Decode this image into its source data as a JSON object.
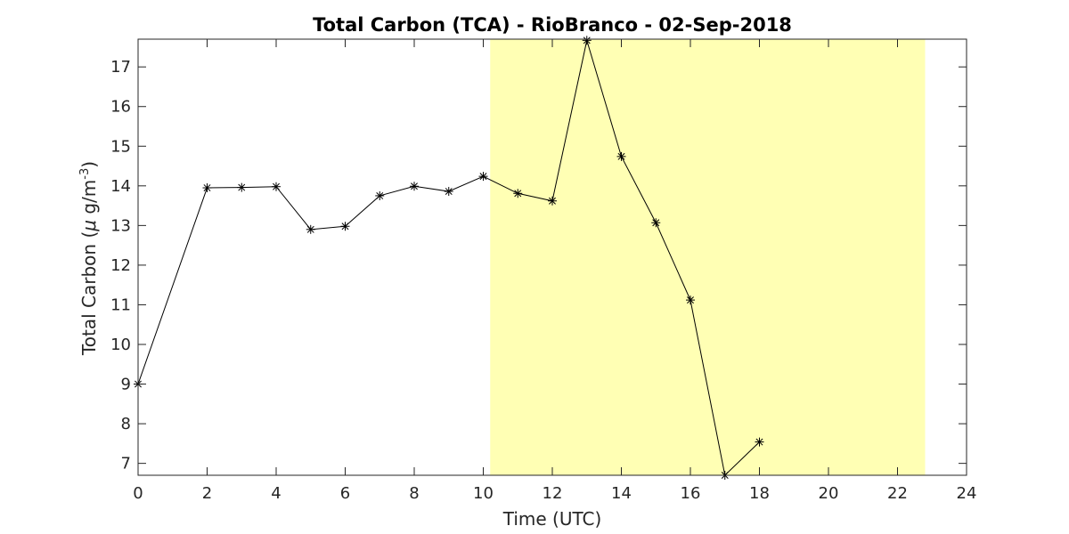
{
  "chart_data": {
    "type": "line",
    "title": "Total Carbon (TCA) - RioBranco - 02-Sep-2018",
    "xlabel": "Time (UTC)",
    "ylabel": {
      "prefix": "Total Carbon (",
      "mu": "μ",
      "unit": " g/m",
      "exponent": "-3",
      "suffix": ")"
    },
    "xlim": [
      0,
      24
    ],
    "ylim": [
      6.7,
      17.7
    ],
    "xticks": [
      0,
      2,
      4,
      6,
      8,
      10,
      12,
      14,
      16,
      18,
      20,
      22,
      24
    ],
    "yticks": [
      7,
      8,
      9,
      10,
      11,
      12,
      13,
      14,
      15,
      16,
      17
    ],
    "grid": false,
    "marker": "asterisk",
    "highlight": {
      "x_start": 10.2,
      "x_end": 22.8,
      "color": "#ffffb4"
    },
    "series_color": "#000000",
    "series": [
      {
        "x": [
          0,
          2,
          3,
          4,
          5,
          6,
          7,
          8,
          9,
          10,
          11,
          12,
          13,
          14,
          15,
          16,
          17,
          18
        ],
        "y": [
          9.0,
          13.95,
          13.96,
          13.98,
          12.9,
          12.98,
          13.75,
          13.99,
          13.86,
          14.24,
          13.81,
          13.62,
          17.67,
          14.74,
          13.07,
          11.12,
          6.7,
          7.54
        ]
      }
    ]
  }
}
